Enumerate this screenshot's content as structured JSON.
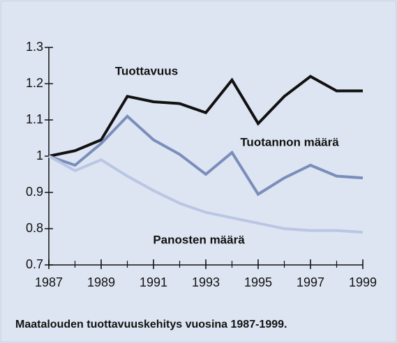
{
  "chart_data": {
    "type": "line",
    "caption": "Maatalouden tuottavuuskehitys vuosina 1987-1999.",
    "x": [
      1987,
      1988,
      1989,
      1990,
      1991,
      1992,
      1993,
      1994,
      1995,
      1996,
      1997,
      1998,
      1999
    ],
    "xlim": [
      1987,
      1999
    ],
    "xticks": [
      1987,
      1989,
      1991,
      1993,
      1995,
      1997,
      1999
    ],
    "ylim": [
      0.7,
      1.3
    ],
    "yticks": [
      0.7,
      0.8,
      0.9,
      1,
      1.1,
      1.2,
      1.3
    ],
    "grid": false,
    "series": [
      {
        "name": "Tuottavuus",
        "color": "#111111",
        "values": [
          1.0,
          1.015,
          1.045,
          1.165,
          1.15,
          1.145,
          1.12,
          1.21,
          1.09,
          1.165,
          1.22,
          1.18,
          1.18
        ]
      },
      {
        "name": "Tuotannon määrä",
        "color": "#7b8dba",
        "values": [
          1.0,
          0.975,
          1.035,
          1.11,
          1.045,
          1.005,
          0.95,
          1.01,
          0.895,
          0.94,
          0.975,
          0.945,
          0.94
        ]
      },
      {
        "name": "Panosten määrä",
        "color": "#bac6e3",
        "values": [
          1.0,
          0.96,
          0.99,
          0.945,
          0.905,
          0.87,
          0.845,
          0.83,
          0.815,
          0.8,
          0.795,
          0.795,
          0.79
        ]
      }
    ]
  }
}
